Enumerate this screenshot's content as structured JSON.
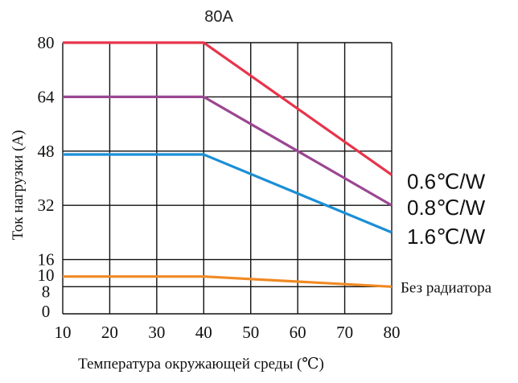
{
  "chart_data": {
    "type": "line",
    "title": "80A",
    "xlabel": "Температура окружающей среды (℃)",
    "ylabel": "Ток нагрузки (A)",
    "x_ticks": [
      "10",
      "20",
      "30",
      "40",
      "50",
      "60",
      "70",
      "80"
    ],
    "y_ticks": [
      {
        "value": 0,
        "label": "0"
      },
      {
        "value": 8,
        "label": "8"
      },
      {
        "value": 10,
        "label": "10"
      },
      {
        "value": 16,
        "label": "16"
      },
      {
        "value": 32,
        "label": "32"
      },
      {
        "value": 48,
        "label": "48"
      },
      {
        "value": 64,
        "label": "64"
      },
      {
        "value": 80,
        "label": "80"
      }
    ],
    "xlim": [
      10,
      80
    ],
    "ylim": [
      0,
      80
    ],
    "grid": true,
    "series": [
      {
        "name": "0.6℃/W",
        "color": "#e8344b",
        "x": [
          10,
          40,
          80
        ],
        "y": [
          80,
          80,
          41
        ]
      },
      {
        "name": "0.8℃/W",
        "color": "#9b4692",
        "x": [
          10,
          40,
          80
        ],
        "y": [
          64,
          64,
          32
        ]
      },
      {
        "name": "1.6℃/W",
        "color": "#1a8fd6",
        "x": [
          10,
          40,
          80
        ],
        "y": [
          47,
          47,
          24
        ]
      },
      {
        "name": "Без радиатора",
        "color": "#f08a24",
        "x": [
          10,
          40,
          80
        ],
        "y": [
          11,
          11,
          8
        ]
      }
    ]
  }
}
